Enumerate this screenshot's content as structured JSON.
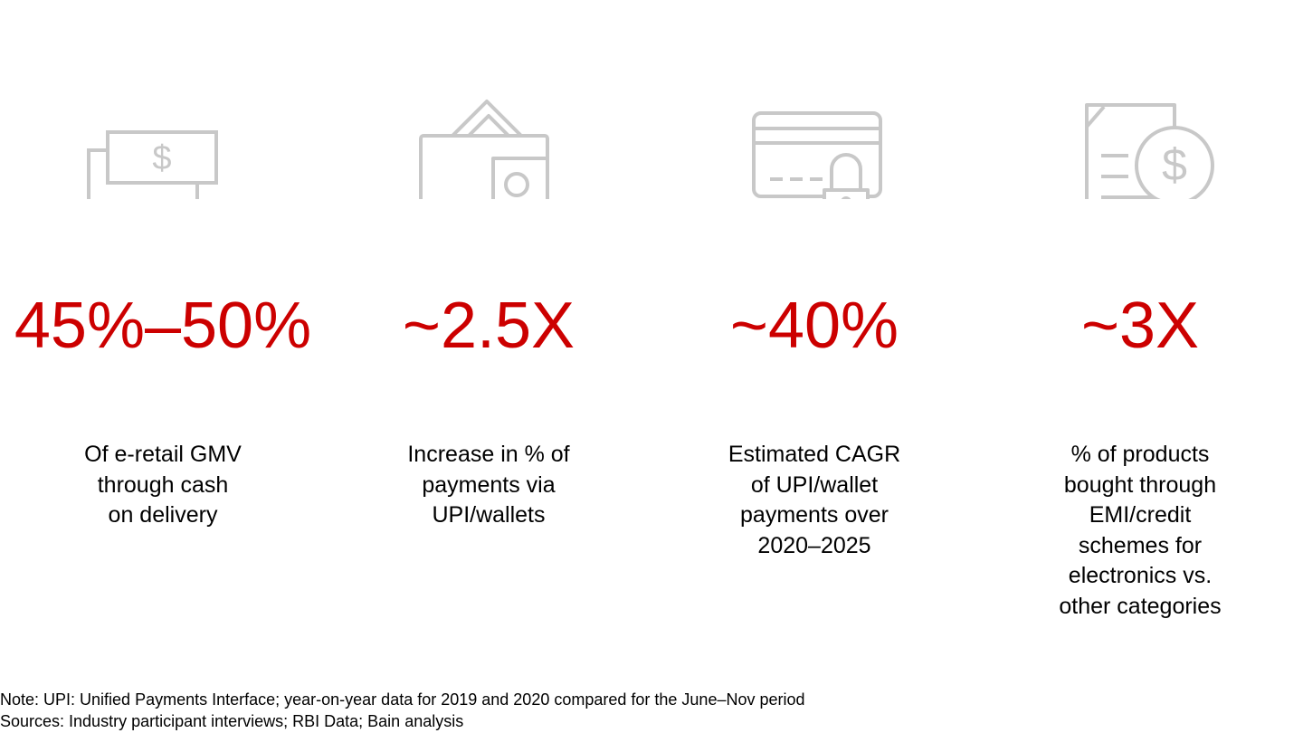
{
  "colors": {
    "accent": "#cc0000",
    "icon_stroke": "#c8c8c8",
    "text": "#000000",
    "background": "#ffffff"
  },
  "stats": [
    {
      "icon": "money-bills-icon",
      "value": "45%–50%",
      "description": "Of e-retail GMV\nthrough cash\non delivery"
    },
    {
      "icon": "wallet-icon",
      "value": "~2.5X",
      "description": "Increase in % of\npayments via\nUPI/wallets"
    },
    {
      "icon": "credit-card-lock-icon",
      "value": "~40%",
      "description": "Estimated CAGR\nof UPI/wallet\npayments over\n2020–2025"
    },
    {
      "icon": "document-dollar-icon",
      "value": "~3X",
      "description": "% of products\nbought through\nEMI/credit\nschemes for\nelectronics vs.\nother categories"
    }
  ],
  "footnotes": {
    "note": "Note: UPI: Unified Payments Interface; year-on-year data for 2019 and 2020 compared for the June–Nov period",
    "sources": "Sources: Industry participant interviews; RBI Data; Bain analysis"
  }
}
